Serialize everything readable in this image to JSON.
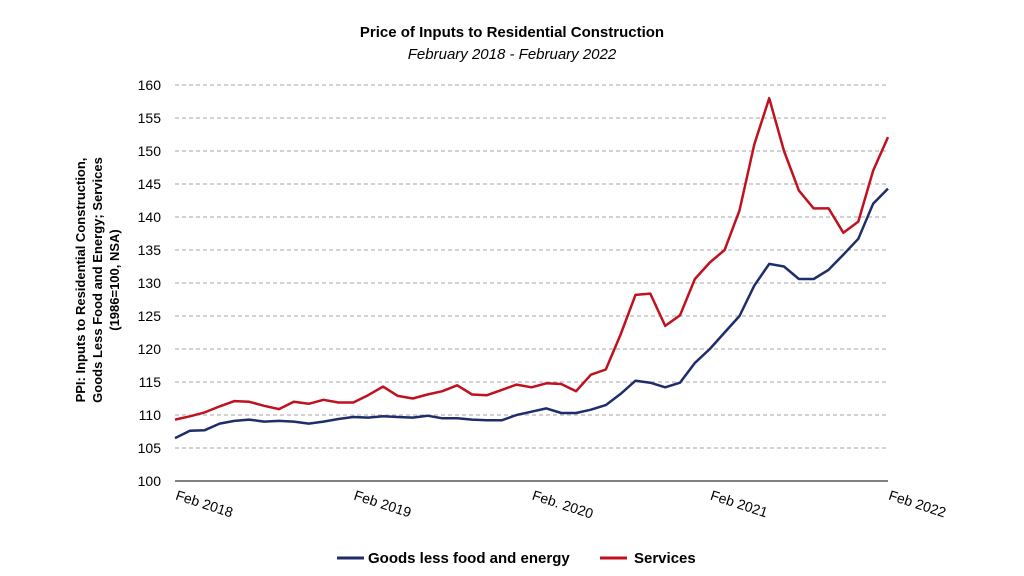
{
  "chart_data": {
    "type": "line",
    "title": "Price of Inputs to Residential Construction",
    "subtitle": "February 2018 - February 2022",
    "ylabel_lines": [
      "PPI: Inputs to Residential Construction,",
      "Goods Less Food and Energy; Services",
      "(1986=100, NSA)"
    ],
    "ylim": [
      100,
      160
    ],
    "yticks": [
      100,
      105,
      110,
      115,
      120,
      125,
      130,
      135,
      140,
      145,
      150,
      155,
      160
    ],
    "x_tick_labels": [
      {
        "index": 0,
        "label": "Feb 2018"
      },
      {
        "index": 12,
        "label": "Feb 2019"
      },
      {
        "index": 24,
        "label": "Feb. 2020"
      },
      {
        "index": 36,
        "label": "Feb 2021"
      },
      {
        "index": 48,
        "label": "Feb 2022"
      }
    ],
    "grid": true,
    "legend_position": "bottom",
    "series": [
      {
        "name": "Goods less food and energy",
        "color": "#1f2d6b",
        "values": [
          106.5,
          107.6,
          107.7,
          108.7,
          109.1,
          109.3,
          109.0,
          109.1,
          109.0,
          108.7,
          109.0,
          109.4,
          109.7,
          109.6,
          109.8,
          109.7,
          109.6,
          109.9,
          109.5,
          109.5,
          109.3,
          109.2,
          109.2,
          110.0,
          110.5,
          111.0,
          110.3,
          110.3,
          110.8,
          111.5,
          113.2,
          115.2,
          114.9,
          114.2,
          114.9,
          117.9,
          120.0,
          122.5,
          125.0,
          129.6,
          132.9,
          132.5,
          130.6,
          130.6,
          132.0,
          134.3,
          136.7,
          142.0,
          144.3
        ]
      },
      {
        "name": "Services",
        "color": "#c0111f",
        "values": [
          109.3,
          109.8,
          110.4,
          111.3,
          112.1,
          112.0,
          111.4,
          110.9,
          112.0,
          111.7,
          112.3,
          111.9,
          111.9,
          113.0,
          114.3,
          112.9,
          112.5,
          113.1,
          113.6,
          114.5,
          113.1,
          113.0,
          113.8,
          114.6,
          114.2,
          114.8,
          114.7,
          113.6,
          116.1,
          116.9,
          122.2,
          128.2,
          128.4,
          123.5,
          125.1,
          130.6,
          133.1,
          135.0,
          141.0,
          151.0,
          158.0,
          150.0,
          144.0,
          141.3,
          141.3,
          137.6,
          139.3,
          147.0,
          152.1
        ]
      }
    ]
  }
}
